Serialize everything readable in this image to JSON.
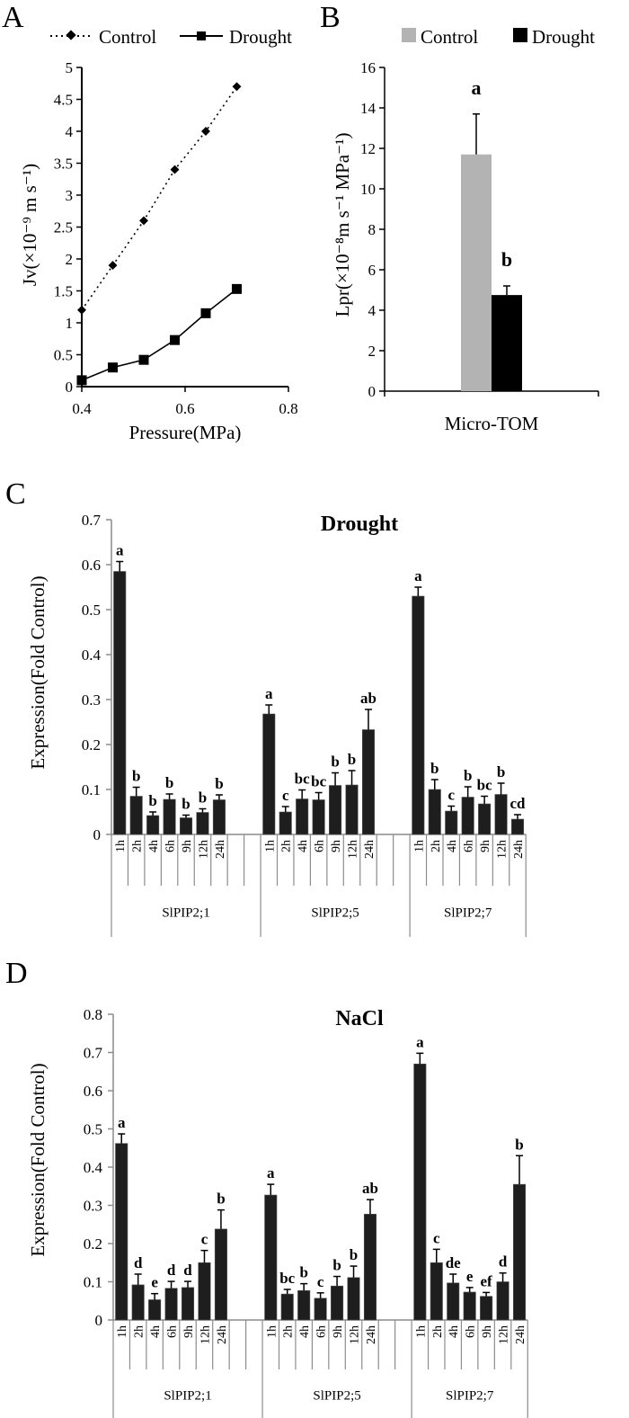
{
  "panels": {
    "A": {
      "letter": "A"
    },
    "B": {
      "letter": "B"
    },
    "C": {
      "letter": "C"
    },
    "D": {
      "letter": "D"
    }
  },
  "chart_data": [
    {
      "id": "A",
      "type": "line",
      "title": "",
      "xlabel": "Pressure(MPa)",
      "ylabel": "Jv(×10⁻⁹ m s⁻¹)",
      "xlim": [
        0.4,
        0.8
      ],
      "ylim": [
        0,
        5
      ],
      "xticks": [
        "0.4",
        "0.6",
        "0.8"
      ],
      "yticks": [
        "0",
        "0.5",
        "1",
        "1.5",
        "2",
        "2.5",
        "3",
        "3.5",
        "4",
        "4.5",
        "5"
      ],
      "legend_position": "top",
      "x": [
        0.4,
        0.46,
        0.52,
        0.58,
        0.64,
        0.7
      ],
      "series": [
        {
          "name": "Control",
          "style": "dotted",
          "marker": "diamond",
          "values": [
            1.2,
            1.9,
            2.6,
            3.4,
            4.0,
            4.7
          ]
        },
        {
          "name": "Drought",
          "style": "solid",
          "marker": "square",
          "values": [
            0.1,
            0.3,
            0.42,
            0.73,
            1.15,
            1.53
          ]
        }
      ]
    },
    {
      "id": "B",
      "type": "bar",
      "title": "",
      "xlabel": "Micro-TOM",
      "ylabel": "Lpr(×10⁻⁸m s⁻¹ MPa⁻¹)",
      "ylim": [
        0,
        16
      ],
      "yticks": [
        "0",
        "2",
        "4",
        "6",
        "8",
        "10",
        "12",
        "14",
        "16"
      ],
      "legend_position": "top",
      "categories": [
        "Micro-TOM"
      ],
      "series": [
        {
          "name": "Control",
          "color": "#b3b3b3",
          "values": [
            11.7
          ],
          "errors": [
            2.0
          ],
          "letters": [
            "a"
          ]
        },
        {
          "name": "Drought",
          "color": "#000000",
          "values": [
            4.75
          ],
          "errors": [
            0.45
          ],
          "letters": [
            "b"
          ]
        }
      ]
    },
    {
      "id": "C",
      "type": "bar",
      "title": "Drought",
      "xlabel": "",
      "ylabel": "Expression(Fold Control)",
      "ylim": [
        0,
        0.7
      ],
      "yticks": [
        "0",
        "0.1",
        "0.2",
        "0.3",
        "0.4",
        "0.5",
        "0.6",
        "0.7"
      ],
      "bar_color": "#1e1e1e",
      "groups": [
        {
          "name": "SlPIP2;1",
          "categories": [
            "1h",
            "2h",
            "4h",
            "6h",
            "9h",
            "12h",
            "24h"
          ],
          "values": [
            0.585,
            0.085,
            0.042,
            0.078,
            0.037,
            0.049,
            0.077
          ],
          "errors": [
            0.022,
            0.02,
            0.008,
            0.012,
            0.006,
            0.008,
            0.011
          ],
          "letters": [
            "a",
            "b",
            "b",
            "b",
            "b",
            "b",
            "b"
          ]
        },
        {
          "name": "SlPIP2;5",
          "categories": [
            "1h",
            "2h",
            "4h",
            "6h",
            "9h",
            "12h",
            "24h"
          ],
          "values": [
            0.268,
            0.05,
            0.079,
            0.077,
            0.109,
            0.11,
            0.233
          ],
          "errors": [
            0.02,
            0.012,
            0.02,
            0.016,
            0.028,
            0.032,
            0.045
          ],
          "letters": [
            "a",
            "c",
            "bc",
            "bc",
            "b",
            "b",
            "ab"
          ]
        },
        {
          "name": "SlPIP2;7",
          "categories": [
            "1h",
            "2h",
            "4h",
            "6h",
            "9h",
            "12h",
            "24h"
          ],
          "values": [
            0.53,
            0.1,
            0.052,
            0.083,
            0.068,
            0.089,
            0.034
          ],
          "errors": [
            0.02,
            0.022,
            0.011,
            0.023,
            0.017,
            0.025,
            0.01
          ],
          "letters": [
            "a",
            "b",
            "c",
            "b",
            "bc",
            "b",
            "cd"
          ]
        }
      ]
    },
    {
      "id": "D",
      "type": "bar",
      "title": "NaCl",
      "xlabel": "",
      "ylabel": "Expression(Fold Control)",
      "ylim": [
        0,
        0.8
      ],
      "yticks": [
        "0",
        "0.1",
        "0.2",
        "0.3",
        "0.4",
        "0.5",
        "0.6",
        "0.7",
        "0.8"
      ],
      "bar_color": "#1e1e1e",
      "groups": [
        {
          "name": "SlPIP2;1",
          "categories": [
            "1h",
            "2h",
            "4h",
            "6h",
            "9h",
            "12h",
            "24h"
          ],
          "values": [
            0.462,
            0.092,
            0.053,
            0.083,
            0.085,
            0.15,
            0.238
          ],
          "errors": [
            0.025,
            0.028,
            0.016,
            0.018,
            0.016,
            0.032,
            0.05
          ],
          "letters": [
            "a",
            "d",
            "e",
            "d",
            "d",
            "c",
            "b"
          ]
        },
        {
          "name": "SlPIP2;5",
          "categories": [
            "1h",
            "2h",
            "4h",
            "6h",
            "9h",
            "12h",
            "24h"
          ],
          "values": [
            0.327,
            0.068,
            0.077,
            0.057,
            0.089,
            0.111,
            0.277
          ],
          "errors": [
            0.028,
            0.012,
            0.018,
            0.014,
            0.025,
            0.03,
            0.038
          ],
          "letters": [
            "a",
            "bc",
            "b",
            "c",
            "b",
            "b",
            "ab"
          ]
        },
        {
          "name": "SlPIP2;7",
          "categories": [
            "1h",
            "2h",
            "4h",
            "6h",
            "9h",
            "12h",
            "24h"
          ],
          "values": [
            0.67,
            0.15,
            0.097,
            0.073,
            0.062,
            0.1,
            0.355
          ],
          "errors": [
            0.028,
            0.035,
            0.023,
            0.012,
            0.01,
            0.023,
            0.075
          ],
          "letters": [
            "a",
            "c",
            "de",
            "e",
            "ef",
            "d",
            "b"
          ]
        }
      ]
    }
  ]
}
